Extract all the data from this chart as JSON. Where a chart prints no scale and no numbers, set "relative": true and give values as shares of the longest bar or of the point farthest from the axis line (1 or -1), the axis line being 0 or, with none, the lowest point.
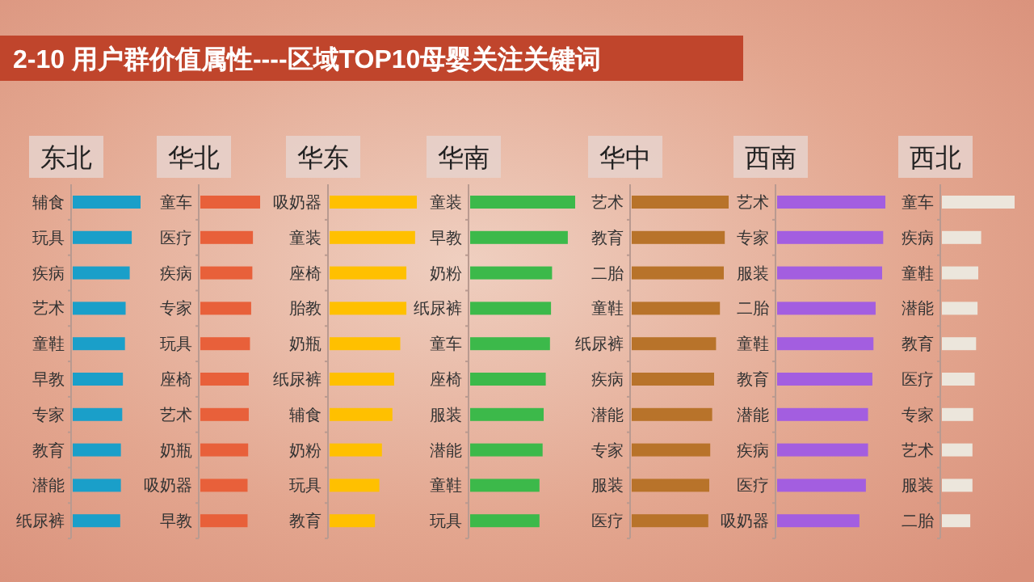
{
  "chart_data": [
    {
      "type": "bar",
      "orientation": "horizontal",
      "relative": true,
      "annotations": [
        "2-10 用户群价值属性----区域TOP10母婴关注关键词"
      ],
      "title": "东北",
      "color": "#1a9fc9",
      "categories": [
        "辅食",
        "玩具",
        "疾病",
        "艺术",
        "童鞋",
        "早教",
        "专家",
        "教育",
        "潜能",
        "纸尿裤"
      ],
      "values": [
        1,
        0.87,
        0.84,
        0.78,
        0.77,
        0.74,
        0.73,
        0.71,
        0.71,
        0.7
      ]
    },
    {
      "type": "bar",
      "orientation": "horizontal",
      "relative": true,
      "title": "华北",
      "color": "#e8603a",
      "categories": [
        "童车",
        "医疗",
        "疾病",
        "专家",
        "玩具",
        "座椅",
        "艺术",
        "奶瓶",
        "吸奶器",
        "早教"
      ],
      "values": [
        1,
        0.88,
        0.87,
        0.85,
        0.83,
        0.81,
        0.81,
        0.8,
        0.79,
        0.79
      ]
    },
    {
      "type": "bar",
      "orientation": "horizontal",
      "relative": true,
      "title": "华东",
      "color": "#ffc000",
      "categories": [
        "吸奶器",
        "童装",
        "座椅",
        "胎教",
        "奶瓶",
        "纸尿裤",
        "辅食",
        "奶粉",
        "玩具",
        "教育"
      ],
      "values": [
        1,
        0.98,
        0.88,
        0.88,
        0.81,
        0.74,
        0.72,
        0.6,
        0.57,
        0.52
      ]
    },
    {
      "type": "bar",
      "orientation": "horizontal",
      "relative": true,
      "title": "华南",
      "color": "#3cb94a",
      "categories": [
        "童装",
        "早教",
        "奶粉",
        "纸尿裤",
        "童车",
        "座椅",
        "服装",
        "潜能",
        "童鞋",
        "玩具"
      ],
      "values": [
        1,
        0.93,
        0.78,
        0.77,
        0.76,
        0.72,
        0.7,
        0.69,
        0.66,
        0.66
      ]
    },
    {
      "type": "bar",
      "orientation": "horizontal",
      "relative": true,
      "title": "华中",
      "color": "#b8732a",
      "categories": [
        "艺术",
        "教育",
        "二胎",
        "童鞋",
        "纸尿裤",
        "疾病",
        "潜能",
        "专家",
        "服装",
        "医疗"
      ],
      "values": [
        1,
        0.96,
        0.95,
        0.91,
        0.87,
        0.85,
        0.83,
        0.81,
        0.8,
        0.79
      ]
    },
    {
      "type": "bar",
      "orientation": "horizontal",
      "relative": true,
      "title": "西南",
      "color": "#a35ee0",
      "categories": [
        "艺术",
        "专家",
        "服装",
        "二胎",
        "童鞋",
        "教育",
        "潜能",
        "疾病",
        "医疗",
        "吸奶器"
      ],
      "values": [
        1,
        0.98,
        0.97,
        0.91,
        0.89,
        0.88,
        0.84,
        0.84,
        0.82,
        0.76
      ]
    },
    {
      "type": "bar",
      "orientation": "horizontal",
      "relative": true,
      "title": "西北",
      "color": "#ece6dc",
      "categories": [
        "童车",
        "疾病",
        "童鞋",
        "潜能",
        "教育",
        "医疗",
        "专家",
        "艺术",
        "服装",
        "二胎"
      ],
      "values": [
        1,
        0.54,
        0.5,
        0.49,
        0.47,
        0.45,
        0.43,
        0.42,
        0.42,
        0.39
      ]
    }
  ]
}
